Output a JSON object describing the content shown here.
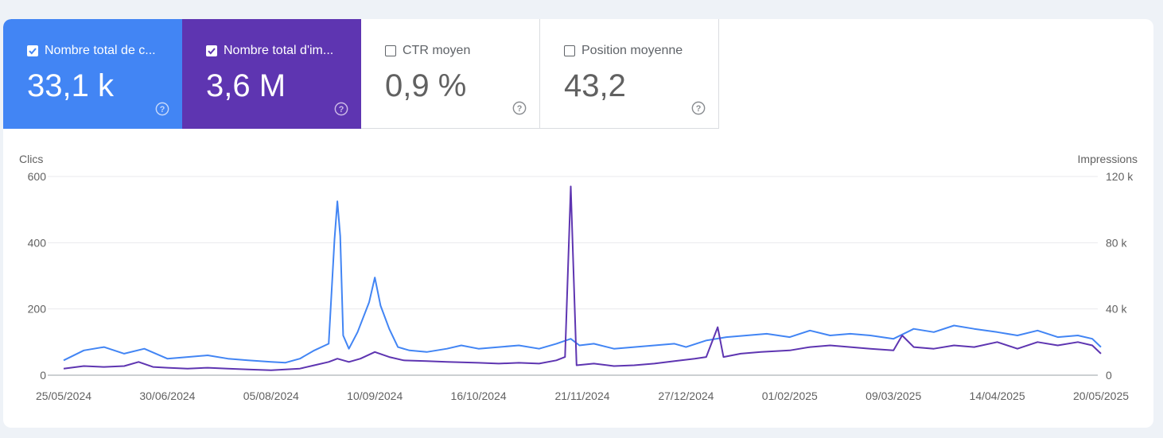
{
  "metrics": [
    {
      "label": "Nombre total de c...",
      "value": "33,1 k",
      "checked": true,
      "color": "#4285f4"
    },
    {
      "label": "Nombre total d'im...",
      "value": "3,6 M",
      "checked": true,
      "color": "#5e35b1"
    },
    {
      "label": "CTR moyen",
      "value": "0,9 %",
      "checked": false
    },
    {
      "label": "Position moyenne",
      "value": "43,2",
      "checked": false
    }
  ],
  "chart_data": {
    "type": "line",
    "ylabel_left": "Clics",
    "ylabel_right": "Impressions",
    "y_ticks_left": [
      "600",
      "400",
      "200",
      "0"
    ],
    "y_ticks_right": [
      "120 k",
      "80 k",
      "40 k",
      "0"
    ],
    "ylim_left": [
      0,
      600
    ],
    "ylim_right": [
      0,
      120000
    ],
    "x_ticks": [
      "25/05/2024",
      "30/06/2024",
      "05/08/2024",
      "10/09/2024",
      "16/10/2024",
      "21/11/2024",
      "27/12/2024",
      "01/02/2025",
      "09/03/2025",
      "14/04/2025",
      "20/05/2025"
    ],
    "grid": true,
    "series": [
      {
        "axis": "left",
        "color": "#4285f4",
        "points": [
          [
            "2024-05-25",
            45
          ],
          [
            "2024-06-01",
            75
          ],
          [
            "2024-06-08",
            85
          ],
          [
            "2024-06-15",
            65
          ],
          [
            "2024-06-22",
            80
          ],
          [
            "2024-06-30",
            50
          ],
          [
            "2024-07-07",
            55
          ],
          [
            "2024-07-14",
            60
          ],
          [
            "2024-07-21",
            50
          ],
          [
            "2024-07-28",
            45
          ],
          [
            "2024-08-05",
            40
          ],
          [
            "2024-08-10",
            38
          ],
          [
            "2024-08-15",
            50
          ],
          [
            "2024-08-20",
            75
          ],
          [
            "2024-08-25",
            95
          ],
          [
            "2024-08-27",
            410
          ],
          [
            "2024-08-28",
            525
          ],
          [
            "2024-08-29",
            420
          ],
          [
            "2024-08-30",
            120
          ],
          [
            "2024-09-01",
            80
          ],
          [
            "2024-09-04",
            130
          ],
          [
            "2024-09-08",
            220
          ],
          [
            "2024-09-10",
            295
          ],
          [
            "2024-09-12",
            210
          ],
          [
            "2024-09-15",
            140
          ],
          [
            "2024-09-18",
            85
          ],
          [
            "2024-09-22",
            75
          ],
          [
            "2024-09-28",
            70
          ],
          [
            "2024-10-05",
            80
          ],
          [
            "2024-10-10",
            90
          ],
          [
            "2024-10-16",
            80
          ],
          [
            "2024-10-23",
            85
          ],
          [
            "2024-10-30",
            90
          ],
          [
            "2024-11-06",
            80
          ],
          [
            "2024-11-12",
            95
          ],
          [
            "2024-11-17",
            110
          ],
          [
            "2024-11-20",
            90
          ],
          [
            "2024-11-25",
            95
          ],
          [
            "2024-12-02",
            80
          ],
          [
            "2024-12-09",
            85
          ],
          [
            "2024-12-16",
            90
          ],
          [
            "2024-12-23",
            95
          ],
          [
            "2024-12-27",
            85
          ],
          [
            "2025-01-03",
            105
          ],
          [
            "2025-01-10",
            115
          ],
          [
            "2025-01-17",
            120
          ],
          [
            "2025-01-24",
            125
          ],
          [
            "2025-02-01",
            115
          ],
          [
            "2025-02-08",
            135
          ],
          [
            "2025-02-15",
            120
          ],
          [
            "2025-02-22",
            125
          ],
          [
            "2025-03-01",
            120
          ],
          [
            "2025-03-09",
            110
          ],
          [
            "2025-03-16",
            140
          ],
          [
            "2025-03-23",
            130
          ],
          [
            "2025-03-30",
            150
          ],
          [
            "2025-04-06",
            140
          ],
          [
            "2025-04-14",
            130
          ],
          [
            "2025-04-21",
            120
          ],
          [
            "2025-04-28",
            135
          ],
          [
            "2025-05-05",
            115
          ],
          [
            "2025-05-12",
            120
          ],
          [
            "2025-05-17",
            110
          ],
          [
            "2025-05-20",
            85
          ]
        ]
      },
      {
        "axis": "right",
        "color": "#5e35b1",
        "points": [
          [
            "2024-05-25",
            4000
          ],
          [
            "2024-06-01",
            5500
          ],
          [
            "2024-06-08",
            5000
          ],
          [
            "2024-06-15",
            5500
          ],
          [
            "2024-06-20",
            8000
          ],
          [
            "2024-06-25",
            5000
          ],
          [
            "2024-06-30",
            4500
          ],
          [
            "2024-07-07",
            4000
          ],
          [
            "2024-07-14",
            4500
          ],
          [
            "2024-07-21",
            4000
          ],
          [
            "2024-07-28",
            3500
          ],
          [
            "2024-08-05",
            3000
          ],
          [
            "2024-08-10",
            3500
          ],
          [
            "2024-08-15",
            4000
          ],
          [
            "2024-08-20",
            6000
          ],
          [
            "2024-08-25",
            8000
          ],
          [
            "2024-08-28",
            10000
          ],
          [
            "2024-09-01",
            8000
          ],
          [
            "2024-09-05",
            10000
          ],
          [
            "2024-09-10",
            14000
          ],
          [
            "2024-09-15",
            11000
          ],
          [
            "2024-09-20",
            9000
          ],
          [
            "2024-09-28",
            8500
          ],
          [
            "2024-10-05",
            8000
          ],
          [
            "2024-10-16",
            7500
          ],
          [
            "2024-10-23",
            7000
          ],
          [
            "2024-10-30",
            7500
          ],
          [
            "2024-11-06",
            7000
          ],
          [
            "2024-11-12",
            9000
          ],
          [
            "2024-11-15",
            11000
          ],
          [
            "2024-11-17",
            114000
          ],
          [
            "2024-11-19",
            6000
          ],
          [
            "2024-11-25",
            7000
          ],
          [
            "2024-12-02",
            5500
          ],
          [
            "2024-12-09",
            6000
          ],
          [
            "2024-12-16",
            7000
          ],
          [
            "2024-12-23",
            8500
          ],
          [
            "2024-12-30",
            10000
          ],
          [
            "2025-01-03",
            11000
          ],
          [
            "2025-01-07",
            29000
          ],
          [
            "2025-01-09",
            11000
          ],
          [
            "2025-01-15",
            13000
          ],
          [
            "2025-01-22",
            14000
          ],
          [
            "2025-02-01",
            15000
          ],
          [
            "2025-02-08",
            17000
          ],
          [
            "2025-02-15",
            18000
          ],
          [
            "2025-02-22",
            17000
          ],
          [
            "2025-03-01",
            16000
          ],
          [
            "2025-03-09",
            15000
          ],
          [
            "2025-03-12",
            24000
          ],
          [
            "2025-03-16",
            17000
          ],
          [
            "2025-03-23",
            16000
          ],
          [
            "2025-03-30",
            18000
          ],
          [
            "2025-04-06",
            17000
          ],
          [
            "2025-04-14",
            20000
          ],
          [
            "2025-04-21",
            16000
          ],
          [
            "2025-04-28",
            20000
          ],
          [
            "2025-05-05",
            18000
          ],
          [
            "2025-05-12",
            20000
          ],
          [
            "2025-05-17",
            18000
          ],
          [
            "2025-05-20",
            13000
          ]
        ]
      }
    ]
  }
}
